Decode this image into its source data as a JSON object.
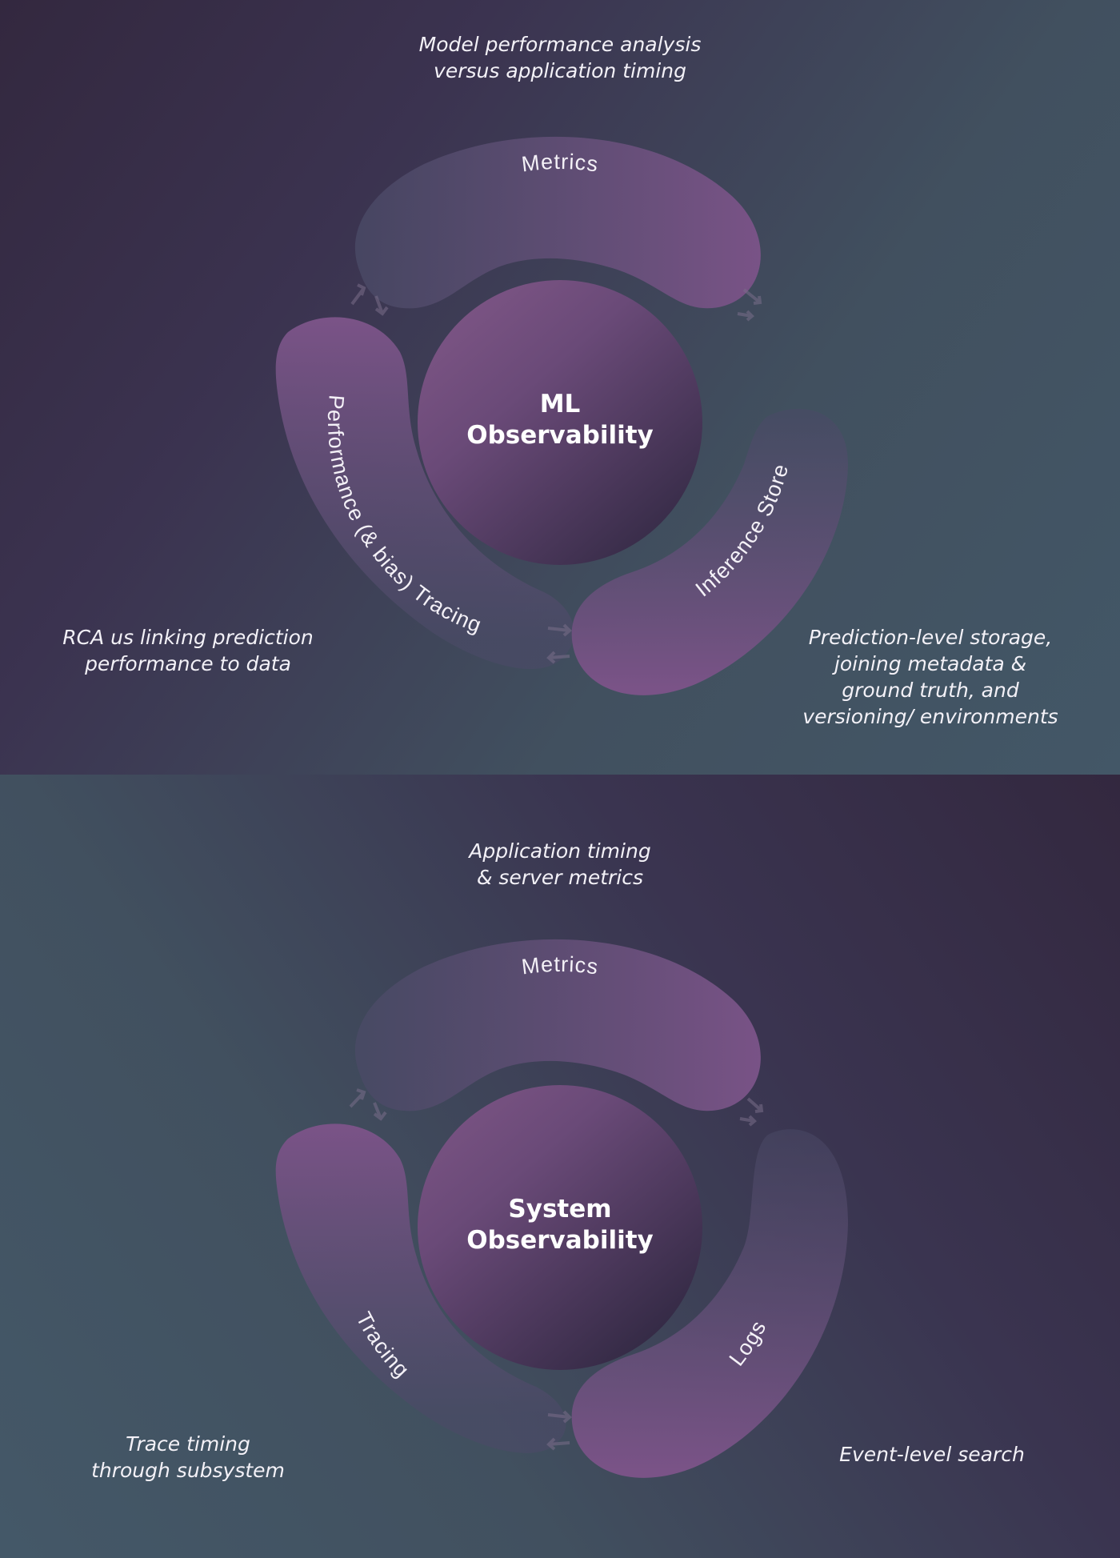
{
  "ml_panel": {
    "top_note": [
      "Model performance analysis",
      "versus application timing"
    ],
    "center_title": [
      "ML",
      "Observability"
    ],
    "segments": {
      "top": "Metrics",
      "left": "Performance (& bias) Tracing",
      "right": "Inference Store"
    },
    "left_note": [
      "RCA us linking prediction",
      "performance to data"
    ],
    "right_note": [
      "Prediction-level storage,",
      "joining metadata &",
      "ground truth, and",
      "versioning/ environments"
    ]
  },
  "system_panel": {
    "top_note": [
      "Application timing",
      "& server metrics"
    ],
    "center_title": [
      "System",
      "Observability"
    ],
    "segments": {
      "top": "Metrics",
      "left": "Tracing",
      "right": "Logs"
    },
    "left_note": [
      "Trace timing",
      "through subsystem"
    ],
    "right_note": [
      "Event-level search"
    ]
  },
  "colors": {
    "segment": "#7a5387",
    "segment_fade": "#4a4a66",
    "core_light": "#7d5585",
    "core_dark": "#362b47"
  }
}
